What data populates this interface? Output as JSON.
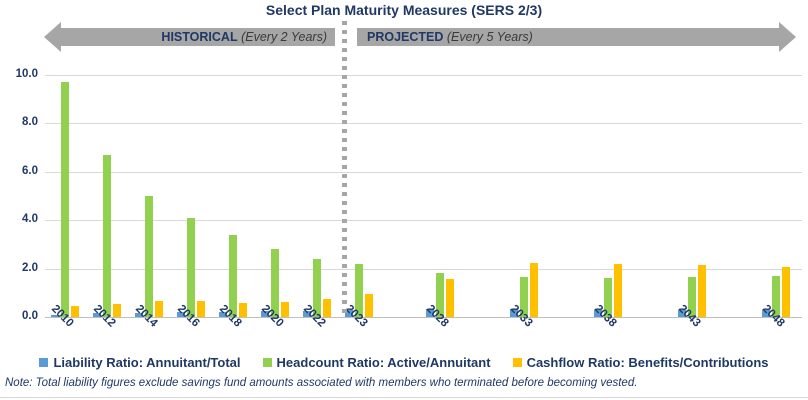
{
  "title": "Select Plan Maturity Measures (SERS 2/3)",
  "banner": {
    "historical_label": "HISTORICAL",
    "historical_note": "(Every 2 Years)",
    "projected_label": "PROJECTED",
    "projected_note": "(Every 5 Years)"
  },
  "note": "Note: Total liability figures exclude savings fund amounts associated with members who terminated before becoming vested.",
  "colors": {
    "navy_text": "#1F3864",
    "arrow_gray": "#A6A6A6",
    "gridline": "#D9D9D9",
    "liability_blue": "#5B9BD5",
    "headcount_green": "#92D050",
    "cashflow_yellow": "#FFC000"
  },
  "chart_data": {
    "type": "bar",
    "title": "Select Plan Maturity Measures (SERS 2/3)",
    "categories": [
      "2010",
      "2012",
      "2014",
      "2016",
      "2018",
      "2020",
      "2022",
      "2023",
      "2028",
      "2033",
      "2038",
      "2043",
      "2048"
    ],
    "historical_categories": [
      "2010",
      "2012",
      "2014",
      "2016",
      "2018",
      "2020",
      "2022",
      "2023"
    ],
    "projected_categories": [
      "2028",
      "2033",
      "2038",
      "2043",
      "2048"
    ],
    "series": [
      {
        "name": "Liability Ratio: Annuitant/Total",
        "color": "#5B9BD5",
        "values": [
          0.1,
          0.15,
          0.18,
          0.22,
          0.22,
          0.26,
          0.26,
          0.3,
          0.35,
          0.32,
          0.3,
          0.3,
          0.28
        ]
      },
      {
        "name": "Headcount Ratio: Active/Annuitant",
        "color": "#92D050",
        "values": [
          9.7,
          6.7,
          5.0,
          4.1,
          3.4,
          2.8,
          2.4,
          2.2,
          1.8,
          1.65,
          1.6,
          1.65,
          1.7
        ]
      },
      {
        "name": "Cashflow Ratio: Benefits/Contributions",
        "color": "#FFC000",
        "values": [
          0.45,
          0.55,
          0.65,
          0.68,
          0.58,
          0.62,
          0.75,
          0.95,
          1.55,
          2.25,
          2.2,
          2.15,
          2.05
        ]
      }
    ],
    "xlabel": "",
    "ylabel": "",
    "ylim": [
      0,
      10
    ],
    "ytick_step": 2,
    "ytick_labels": [
      "0.0",
      "2.0",
      "4.0",
      "6.0",
      "8.0",
      "10.0"
    ],
    "grid": true,
    "legend_position": "bottom"
  }
}
